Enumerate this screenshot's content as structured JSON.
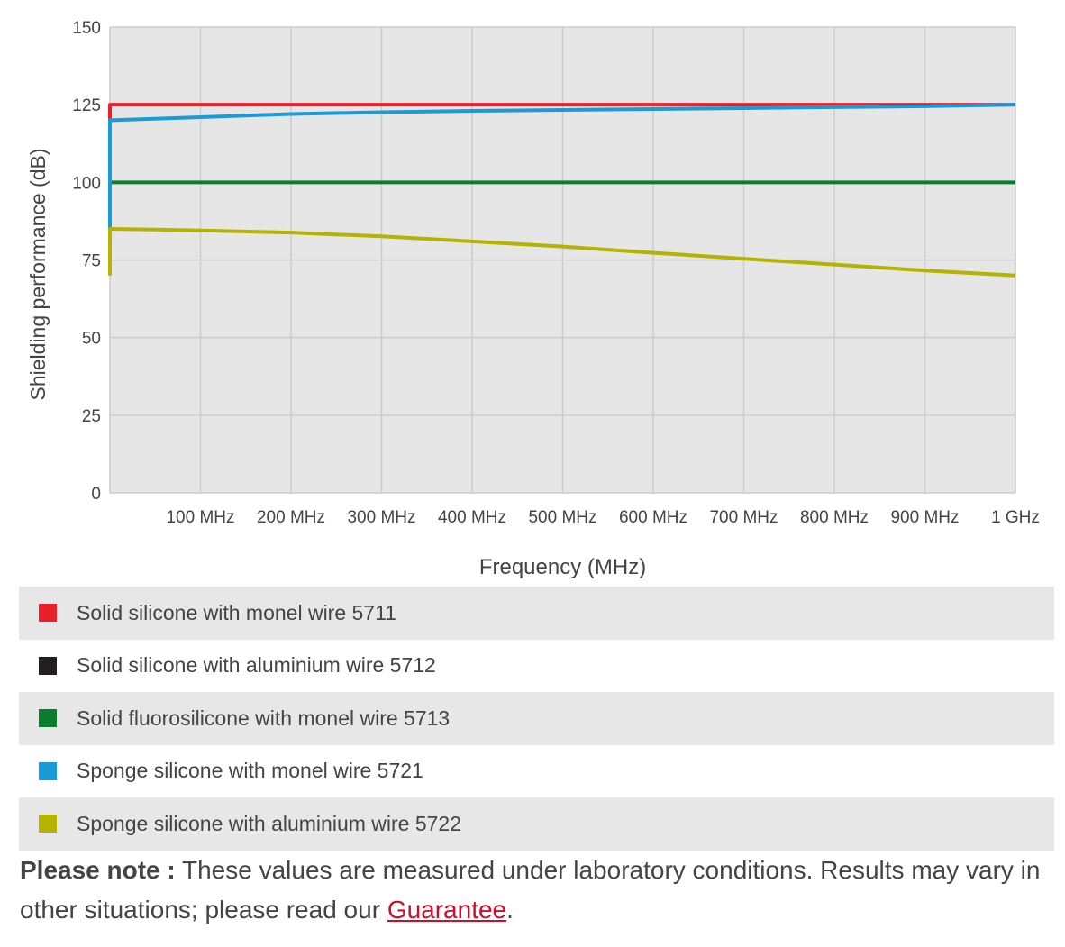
{
  "chart_data": {
    "type": "line",
    "title": "",
    "xlabel": "Frequency (MHz)",
    "ylabel": "Shielding performance (dB)",
    "xlim": [
      0,
      1000
    ],
    "ylim": [
      0,
      150
    ],
    "y_ticks": [
      0,
      25,
      50,
      75,
      100,
      125,
      150
    ],
    "x_ticks": [
      {
        "value": 100,
        "label": "100 MHz"
      },
      {
        "value": 200,
        "label": "200 MHz"
      },
      {
        "value": 300,
        "label": "300 MHz"
      },
      {
        "value": 400,
        "label": "400 MHz"
      },
      {
        "value": 500,
        "label": "500 MHz"
      },
      {
        "value": 600,
        "label": "600 MHz"
      },
      {
        "value": 700,
        "label": "700 MHz"
      },
      {
        "value": 800,
        "label": "800 MHz"
      },
      {
        "value": 900,
        "label": "900 MHz"
      },
      {
        "value": 1000,
        "label": "1 GHz"
      }
    ],
    "grid": true,
    "legend_position": "bottom",
    "series": [
      {
        "name": "Solid silicone with monel wire 5711",
        "color": "#e8202a",
        "points": [
          [
            0,
            120
          ],
          [
            0,
            125
          ],
          [
            1000,
            125
          ]
        ]
      },
      {
        "name": "Solid silicone with aluminium wire 5712",
        "color": "#231f20",
        "points": []
      },
      {
        "name": "Solid fluorosilicone with monel wire 5713",
        "color": "#0a7d2c",
        "points": [
          [
            0,
            95
          ],
          [
            0,
            100
          ],
          [
            1000,
            100
          ]
        ]
      },
      {
        "name": "Sponge silicone with monel wire 5721",
        "color": "#1a9ad6",
        "points": [
          [
            0,
            85
          ],
          [
            0,
            120
          ],
          [
            100,
            121
          ],
          [
            200,
            122
          ],
          [
            300,
            122.6
          ],
          [
            400,
            123
          ],
          [
            500,
            123.3
          ],
          [
            600,
            123.6
          ],
          [
            700,
            123.9
          ],
          [
            800,
            124.2
          ],
          [
            900,
            124.5
          ],
          [
            1000,
            125
          ]
        ]
      },
      {
        "name": "Sponge silicone with aluminium wire 5722",
        "color": "#b3b300",
        "points": [
          [
            0,
            70
          ],
          [
            0,
            85
          ],
          [
            50,
            84.8
          ],
          [
            100,
            84.5
          ],
          [
            200,
            83.8
          ],
          [
            300,
            82.6
          ],
          [
            400,
            81
          ],
          [
            500,
            79.3
          ],
          [
            600,
            77.3
          ],
          [
            700,
            75.4
          ],
          [
            800,
            73.5
          ],
          [
            900,
            71.6
          ],
          [
            1000,
            70
          ]
        ]
      }
    ]
  },
  "legend": {
    "items": [
      {
        "label": "Solid silicone with monel wire 5711",
        "color": "#e8202a"
      },
      {
        "label": "Solid silicone with aluminium wire 5712",
        "color": "#231f20"
      },
      {
        "label": "Solid fluorosilicone with monel wire 5713",
        "color": "#0a7d2c"
      },
      {
        "label": "Sponge silicone with monel wire 5721",
        "color": "#1a9ad6"
      },
      {
        "label": "Sponge silicone with aluminium wire 5722",
        "color": "#b3b300"
      }
    ]
  },
  "note": {
    "bold": "Please note :",
    "text": " These values are measured under laboratory conditions. Results may vary in other situations; please read our ",
    "link": "Guarantee",
    "end": "."
  },
  "colors": {
    "plot_bg": "#e6e6e6",
    "grid": "#cccccc",
    "text": "#444444",
    "link": "#c8102e"
  }
}
